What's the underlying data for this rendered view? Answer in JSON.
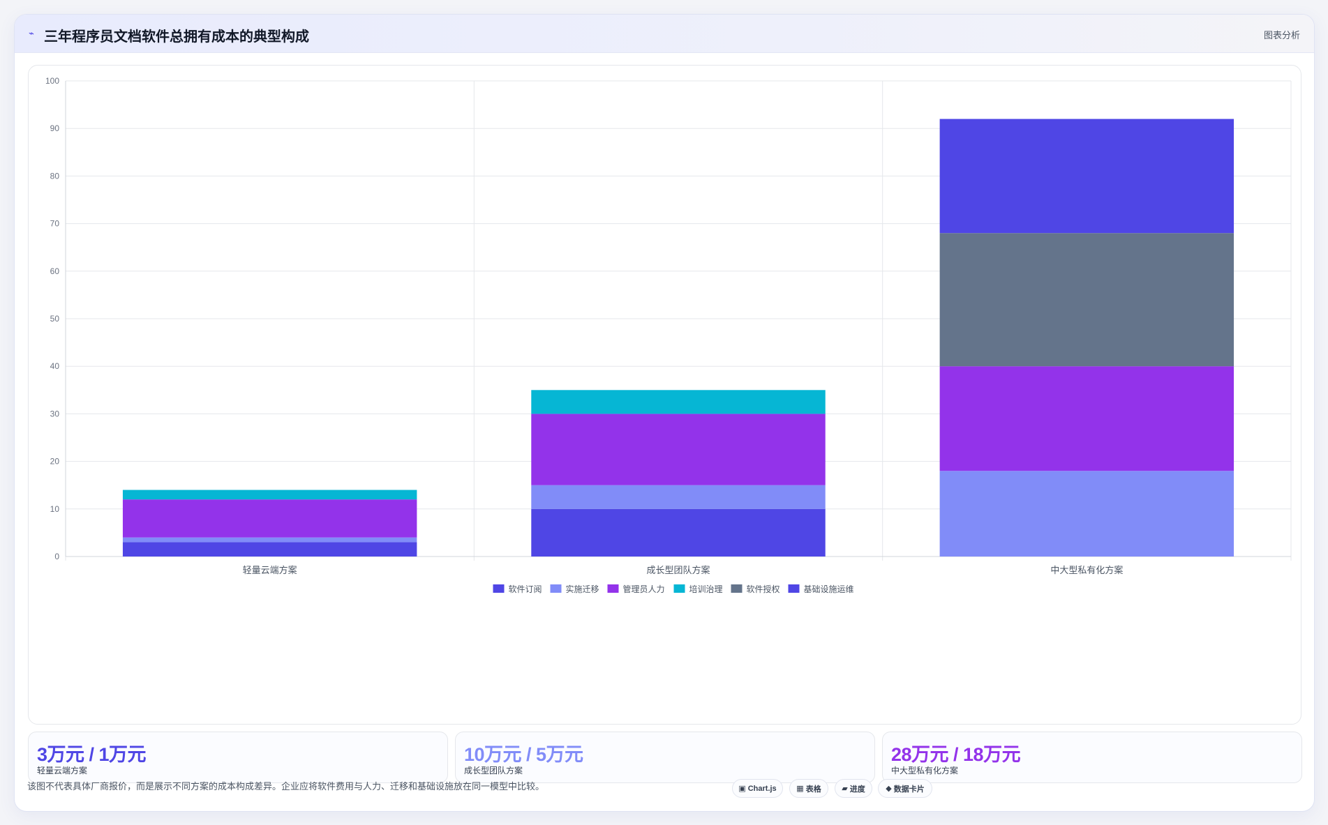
{
  "header": {
    "icon": "line-chart-icon",
    "title": "三年程序员文档软件总拥有成本的典型构成",
    "badge": "图表分析"
  },
  "chart_data": {
    "type": "bar",
    "stacked": true,
    "categories": [
      "轻量云端方案",
      "成长型团队方案",
      "中大型私有化方案"
    ],
    "series": [
      {
        "name": "软件订阅",
        "color": "#4f46e5",
        "values": [
          3,
          10,
          0
        ]
      },
      {
        "name": "实施迁移",
        "color": "#818cf8",
        "values": [
          1,
          5,
          18
        ]
      },
      {
        "name": "管理员人力",
        "color": "#9333ea",
        "values": [
          8,
          15,
          22
        ]
      },
      {
        "name": "培训治理",
        "color": "#06b6d4",
        "values": [
          2,
          5,
          0
        ]
      },
      {
        "name": "软件授权",
        "color": "#64748b",
        "values": [
          0,
          0,
          28
        ]
      },
      {
        "name": "基础设施运维",
        "color": "#4f46e5",
        "values": [
          0,
          0,
          24
        ]
      }
    ],
    "ylim": [
      0,
      100
    ],
    "yticks": [
      0,
      10,
      20,
      30,
      40,
      50,
      60,
      70,
      80,
      90,
      100
    ],
    "grid": true,
    "legend": "bottom",
    "title": "",
    "xlabel": "",
    "ylabel": ""
  },
  "stats": [
    {
      "value": "3万元 / 1万元",
      "label": "轻量云端方案",
      "color": "#4f46e5"
    },
    {
      "value": "10万元 / 5万元",
      "label": "成长型团队方案",
      "color": "#818cf8"
    },
    {
      "value": "28万元 / 18万元",
      "label": "中大型私有化方案",
      "color": "#9333ea"
    }
  ],
  "footnote": "该图不代表具体厂商报价，而是展示不同方案的成本构成差异。企业应将软件费用与人力、迁移和基础设施放在同一模型中比较。",
  "chips": [
    {
      "icon": "▣",
      "icon_name": "chart-icon",
      "label": "Chart.js"
    },
    {
      "icon": "▦",
      "icon_name": "table-icon",
      "label": "表格"
    },
    {
      "icon": "▰",
      "icon_name": "progress-icon",
      "label": "进度"
    },
    {
      "icon": "◆",
      "icon_name": "diamond-icon",
      "label": "数据卡片"
    }
  ]
}
